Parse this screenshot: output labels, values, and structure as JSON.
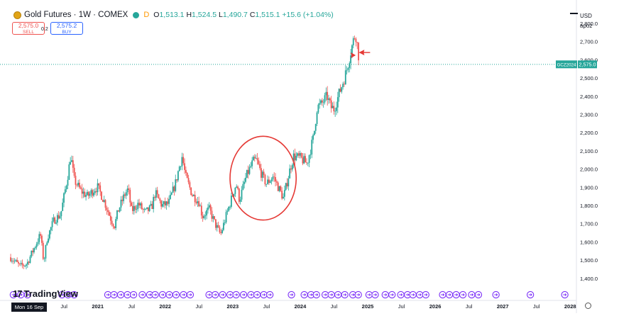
{
  "header": {
    "title": "Gold Futures · 1W · COMEX",
    "delay_tag": "D",
    "ohlc": {
      "o": "1,513.1",
      "h": "1,524.5",
      "l": "1,490.7",
      "c": "1,515.1",
      "change": "+15.6 (+1.04%)"
    },
    "sell_price": "2,575.0",
    "sell_label": "SELL",
    "spread": "0.2",
    "buy_price": "2,575.2",
    "buy_label": "BUY"
  },
  "axis_controls": {
    "currency": "USD",
    "scale_label": "apoz"
  },
  "branding": {
    "logo_text": "TradingView"
  },
  "crosshair_date": "Mon 16 Sep '19",
  "price_tag": {
    "symbol": "GCZ2024",
    "value": "2,575.0"
  },
  "colors": {
    "up": "#26a69a",
    "down": "#ef5350",
    "annotation": "#e53935",
    "event": "#7b2ff7"
  },
  "chart_data": {
    "type": "candlestick",
    "timeframe": "1W",
    "x_labels": [
      "Jul",
      "2021",
      "Jul",
      "2022",
      "Jul",
      "2023",
      "Jul",
      "2024",
      "Jul",
      "2025",
      "Jul",
      "2026",
      "Jul",
      "2027",
      "Jul",
      "2028"
    ],
    "x_label_years": [
      2020.5,
      2021.0,
      2021.5,
      2022.0,
      2022.5,
      2023.0,
      2023.5,
      2024.0,
      2024.5,
      2025.0,
      2025.5,
      2026.0,
      2026.5,
      2027.0,
      2027.5,
      2028.0
    ],
    "y_ticks": [
      1400,
      1500,
      1600,
      1700,
      1800,
      1900,
      2000,
      2100,
      2200,
      2300,
      2400,
      2500,
      2600,
      2700,
      2800
    ],
    "y_range": [
      1372,
      2905
    ],
    "x_range": [
      2019.72,
      2028.05
    ],
    "last_price": 2575.0,
    "price_path": [
      [
        2019.71,
        1515
      ],
      [
        2019.85,
        1465
      ],
      [
        2019.95,
        1480
      ],
      [
        2020.05,
        1560
      ],
      [
        2020.15,
        1640
      ],
      [
        2020.2,
        1490
      ],
      [
        2020.25,
        1620
      ],
      [
        2020.35,
        1720
      ],
      [
        2020.45,
        1750
      ],
      [
        2020.55,
        1950
      ],
      [
        2020.6,
        2075
      ],
      [
        2020.65,
        1940
      ],
      [
        2020.75,
        1880
      ],
      [
        2020.85,
        1850
      ],
      [
        2020.95,
        1890
      ],
      [
        2021.0,
        1900
      ],
      [
        2021.1,
        1820
      ],
      [
        2021.2,
        1720
      ],
      [
        2021.25,
        1690
      ],
      [
        2021.3,
        1770
      ],
      [
        2021.4,
        1860
      ],
      [
        2021.45,
        1890
      ],
      [
        2021.5,
        1770
      ],
      [
        2021.6,
        1810
      ],
      [
        2021.7,
        1760
      ],
      [
        2021.8,
        1790
      ],
      [
        2021.85,
        1870
      ],
      [
        2021.95,
        1800
      ],
      [
        2022.05,
        1810
      ],
      [
        2022.15,
        1920
      ],
      [
        2022.2,
        2000
      ],
      [
        2022.25,
        2070
      ],
      [
        2022.3,
        1960
      ],
      [
        2022.4,
        1860
      ],
      [
        2022.5,
        1820
      ],
      [
        2022.55,
        1740
      ],
      [
        2022.65,
        1780
      ],
      [
        2022.75,
        1690
      ],
      [
        2022.82,
        1640
      ],
      [
        2022.9,
        1740
      ],
      [
        2022.95,
        1800
      ],
      [
        2023.05,
        1920
      ],
      [
        2023.1,
        1830
      ],
      [
        2023.2,
        1960
      ],
      [
        2023.3,
        2040
      ],
      [
        2023.35,
        2050
      ],
      [
        2023.45,
        1950
      ],
      [
        2023.5,
        1920
      ],
      [
        2023.6,
        1960
      ],
      [
        2023.7,
        1880
      ],
      [
        2023.75,
        1840
      ],
      [
        2023.85,
        2000
      ],
      [
        2023.9,
        2070
      ],
      [
        2024.0,
        2060
      ],
      [
        2024.1,
        2030
      ],
      [
        2024.2,
        2180
      ],
      [
        2024.25,
        2340
      ],
      [
        2024.3,
        2350
      ],
      [
        2024.4,
        2400
      ],
      [
        2024.45,
        2340
      ],
      [
        2024.5,
        2330
      ],
      [
        2024.6,
        2440
      ],
      [
        2024.68,
        2530
      ],
      [
        2024.75,
        2650
      ],
      [
        2024.82,
        2750
      ],
      [
        2024.86,
        2640
      ],
      [
        2024.88,
        2575
      ]
    ],
    "annotations": [
      {
        "type": "ellipse",
        "center": [
          2023.45,
          1950
        ],
        "radius_years": 0.49,
        "radius_price": 230
      },
      {
        "type": "arrow",
        "direction": "right",
        "at": [
          2024.77,
          2625
        ]
      },
      {
        "type": "arrow",
        "direction": "left",
        "at": [
          2024.93,
          2640
        ]
      }
    ],
    "events": [
      2019.75,
      2019.86,
      2019.96,
      2020.47,
      2020.56,
      2020.65,
      2021.15,
      2021.24,
      2021.34,
      2021.44,
      2021.53,
      2021.66,
      2021.77,
      2021.85,
      2021.96,
      2022.06,
      2022.16,
      2022.27,
      2022.37,
      2022.65,
      2022.74,
      2022.85,
      2022.96,
      2023.05,
      2023.16,
      2023.27,
      2023.36,
      2023.46,
      2023.55,
      2023.87,
      2024.06,
      2024.16,
      2024.24,
      2024.37,
      2024.46,
      2024.56,
      2024.66,
      2024.78,
      2024.86,
      2025.02,
      2025.11,
      2025.26,
      2025.36,
      2025.49,
      2025.59,
      2025.67,
      2025.77,
      2025.86,
      2026.11,
      2026.21,
      2026.31,
      2026.41,
      2026.54,
      2026.64,
      2026.9,
      2027.41,
      2027.92
    ]
  }
}
